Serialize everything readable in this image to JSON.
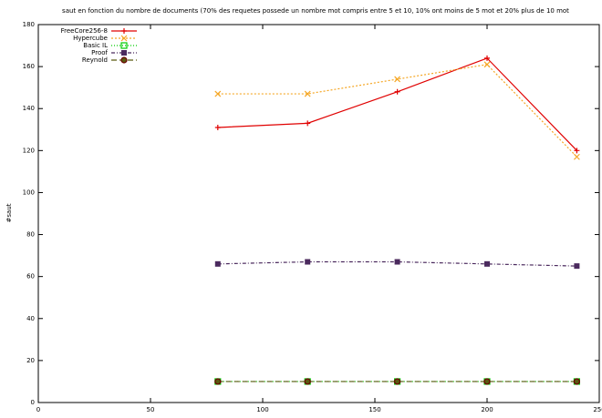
{
  "chart_data": {
    "type": "line",
    "title": "saut en fonction du nombre de documents (70% des requetes possede un nombre mot compris entre 5 et 10, 10% ont moins de 5 mot et 20% plus de 10 mot",
    "ylabel": "#saut",
    "x": [
      80,
      120,
      160,
      200,
      240
    ],
    "xlim": [
      0,
      250
    ],
    "xticks": [
      0,
      50,
      100,
      150,
      200,
      250
    ],
    "ylim": [
      0,
      180
    ],
    "yticks": [
      0,
      20,
      40,
      60,
      80,
      100,
      120,
      140,
      160,
      180
    ],
    "legend": "top-left",
    "series": [
      {
        "name": "FreeCore256-8",
        "color": "#e00000",
        "marker": "plus",
        "dash": "",
        "values": [
          131,
          133,
          148,
          164,
          120
        ]
      },
      {
        "name": "Hypercube",
        "color": "#f5a623",
        "marker": "cross",
        "dash": "2,2",
        "values": [
          147,
          147,
          154,
          161,
          117
        ]
      },
      {
        "name": "Basic IL",
        "color": "#00cc00",
        "marker": "square-open",
        "dash": "1,2",
        "values": [
          10,
          10,
          10,
          10,
          10
        ]
      },
      {
        "name": "Proof",
        "color": "#4b2a5e",
        "marker": "square",
        "dash": "4,2,1,2",
        "values": [
          66,
          67,
          67,
          66,
          65
        ]
      },
      {
        "name": "Reynold",
        "color": "#5a5a10",
        "marker": "circle",
        "dash": "6,3",
        "values": [
          10,
          10,
          10,
          10,
          10
        ]
      }
    ]
  }
}
